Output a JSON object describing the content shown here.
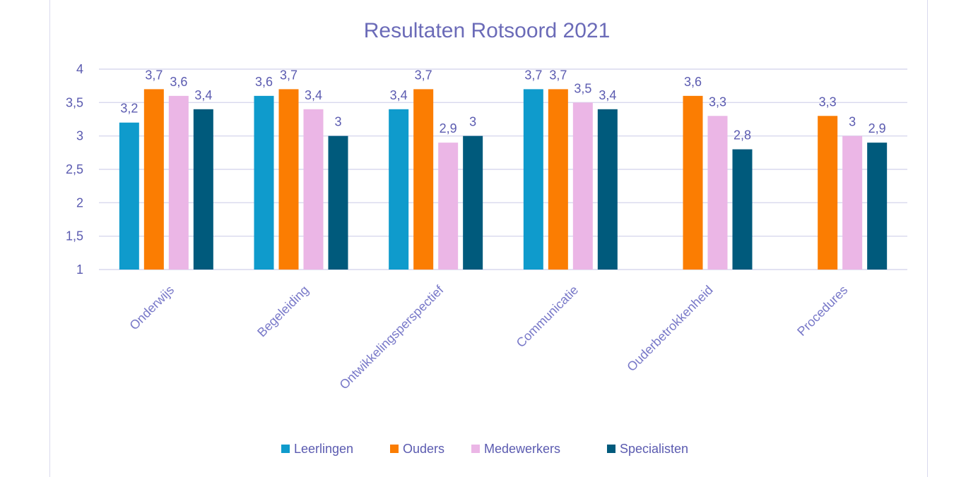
{
  "chart_data": {
    "type": "bar",
    "title": "Resultaten Rotsoord 2021",
    "xlabel": "",
    "ylabel": "",
    "ylim": [
      1,
      4
    ],
    "yticks": [
      1,
      1.5,
      2,
      2.5,
      3,
      3.5,
      4
    ],
    "ytick_labels": [
      "1",
      "1,5",
      "2",
      "2,5",
      "3",
      "3,5",
      "4"
    ],
    "grid": true,
    "legend_position": "bottom",
    "categories": [
      "Onderwijs",
      "Begeleiding",
      "Ontwikkelingsperspectief",
      "Communicatie",
      "Ouderbetrokkenheid",
      "Procedures"
    ],
    "series": [
      {
        "name": "Leerlingen",
        "color": "#0f9bcc",
        "values": [
          3.2,
          3.6,
          3.4,
          3.7,
          null,
          null
        ],
        "labels": [
          "3,2",
          "3,6",
          "3,4",
          "3,7",
          "",
          ""
        ]
      },
      {
        "name": "Ouders",
        "color": "#fb7d02",
        "values": [
          3.7,
          3.7,
          3.7,
          3.7,
          3.6,
          3.3
        ],
        "labels": [
          "3,7",
          "3,7",
          "3,7",
          "3,7",
          "3,6",
          "3,3"
        ]
      },
      {
        "name": "Medewerkers",
        "color": "#ebb6e6",
        "values": [
          3.6,
          3.4,
          2.9,
          3.5,
          3.3,
          3.0
        ],
        "labels": [
          "3,6",
          "3,4",
          "2,9",
          "3,5",
          "3,3",
          "3"
        ]
      },
      {
        "name": "Specialisten",
        "color": "#005a7c",
        "values": [
          3.4,
          3.0,
          3.0,
          3.4,
          2.8,
          2.9
        ],
        "labels": [
          "3,4",
          "3",
          "3",
          "3,4",
          "2,8",
          "2,9"
        ]
      }
    ]
  }
}
